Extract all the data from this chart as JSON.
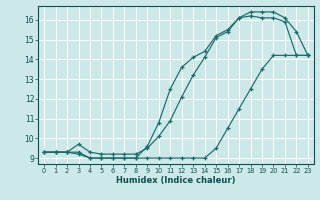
{
  "xlabel": "Humidex (Indice chaleur)",
  "xlim": [
    -0.5,
    23.5
  ],
  "ylim": [
    8.7,
    16.7
  ],
  "yticks": [
    9,
    10,
    11,
    12,
    13,
    14,
    15,
    16
  ],
  "xticks": [
    0,
    1,
    2,
    3,
    4,
    5,
    6,
    7,
    8,
    9,
    10,
    11,
    12,
    13,
    14,
    15,
    16,
    17,
    18,
    19,
    20,
    21,
    22,
    23
  ],
  "background_color": "#cce8e8",
  "grid_color": "#ffffff",
  "line_color": "#1a6b6b",
  "line_color2": "#0d4f4f",
  "line1_x": [
    0,
    1,
    2,
    3,
    4,
    5,
    6,
    7,
    8,
    9,
    10,
    11,
    12,
    13,
    14,
    15,
    16,
    17,
    18,
    19,
    20,
    21,
    22,
    23
  ],
  "line1_y": [
    9.3,
    9.3,
    9.3,
    9.3,
    9.0,
    9.0,
    9.0,
    9.0,
    9.0,
    9.0,
    9.0,
    9.0,
    9.0,
    9.0,
    9.0,
    9.5,
    10.5,
    11.5,
    12.5,
    13.5,
    14.2,
    14.2,
    14.2,
    14.2
  ],
  "line2_x": [
    0,
    1,
    2,
    3,
    4,
    5,
    6,
    7,
    8,
    9,
    10,
    11,
    12,
    13,
    14,
    15,
    16,
    17,
    18,
    19,
    20,
    21,
    22,
    23
  ],
  "line2_y": [
    9.3,
    9.3,
    9.3,
    9.7,
    9.3,
    9.2,
    9.2,
    9.2,
    9.2,
    9.5,
    10.1,
    10.9,
    12.1,
    13.2,
    14.1,
    15.1,
    15.4,
    16.1,
    16.2,
    16.1,
    16.1,
    15.9,
    14.2,
    14.2
  ],
  "line3_x": [
    0,
    1,
    2,
    3,
    4,
    5,
    6,
    7,
    8,
    9,
    10,
    11,
    12,
    13,
    14,
    15,
    16,
    17,
    18,
    19,
    20,
    21,
    22,
    23
  ],
  "line3_y": [
    9.3,
    9.3,
    9.3,
    9.2,
    9.0,
    9.0,
    9.0,
    9.0,
    9.0,
    9.6,
    10.8,
    12.5,
    13.6,
    14.1,
    14.4,
    15.2,
    15.5,
    16.1,
    16.4,
    16.4,
    16.4,
    16.1,
    15.4,
    14.2
  ]
}
